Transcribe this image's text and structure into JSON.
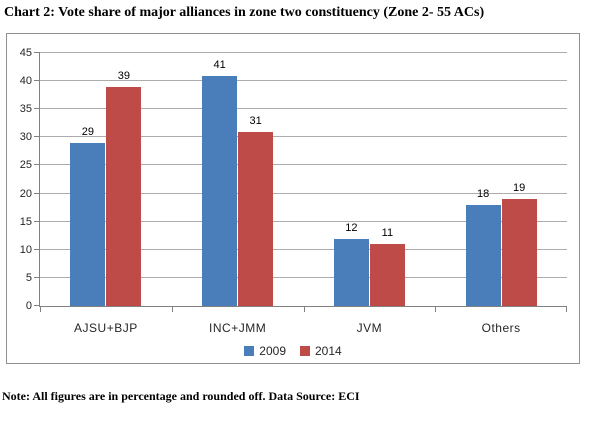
{
  "title": "Chart 2: Vote share of major alliances in zone two constituency (Zone 2- 55 ACs)",
  "note": "Note: All figures are in percentage and rounded off. Data Source: ECI",
  "chart_data": {
    "type": "bar",
    "title": "Chart 2: Vote share of major alliances in zone two constituency (Zone 2- 55 ACs)",
    "categories": [
      "AJSU+BJP",
      "INC+JMM",
      "JVM",
      "Others"
    ],
    "series": [
      {
        "name": "2009",
        "color": "#4a7ebb",
        "values": [
          29,
          41,
          12,
          18
        ]
      },
      {
        "name": "2014",
        "color": "#be4b48",
        "values": [
          39,
          31,
          11,
          19
        ]
      }
    ],
    "xlabel": "",
    "ylabel": "",
    "ylim": [
      0,
      45
    ],
    "ytick_step": 5,
    "grid": true,
    "legend_position": "bottom",
    "annotation": "Note: All figures are in percentage and rounded off. Data Source: ECI"
  },
  "colors": {
    "grid": "#acacac",
    "axis": "#808080",
    "frame_border": "#919191",
    "label_text": "#262626",
    "data_label": "#000000"
  }
}
